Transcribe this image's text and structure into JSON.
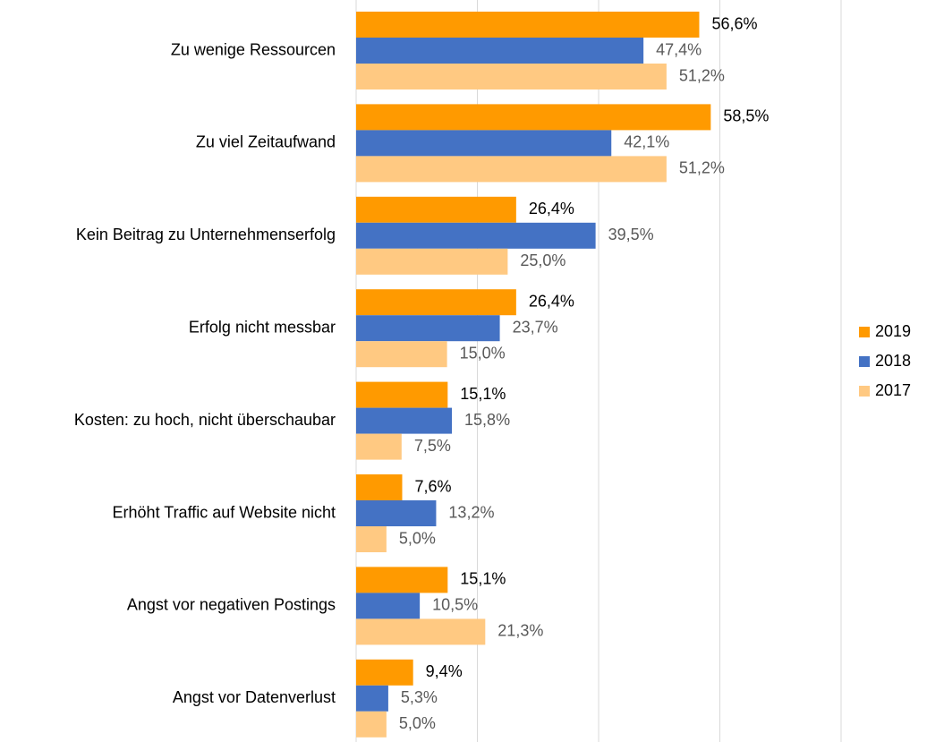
{
  "chart_data": {
    "type": "hbar",
    "categories": [
      "Zu wenige Ressourcen",
      "Zu viel Zeitaufwand",
      "Kein Beitrag zu Unternehmenserfolg",
      "Erfolg nicht messbar",
      "Kosten: zu hoch, nicht überschaubar",
      "Erhöht Traffic auf Website nicht",
      "Angst vor negativen Postings",
      "Angst vor Datenverlust"
    ],
    "series": [
      {
        "name": "2019",
        "color": "#ff9a00",
        "label_color": "#000000",
        "values": [
          56.6,
          58.5,
          26.4,
          26.4,
          15.1,
          7.6,
          15.1,
          9.4
        ],
        "value_labels": [
          "56,6%",
          "58,5%",
          "26,4%",
          "26,4%",
          "15,1%",
          "7,6%",
          "15,1%",
          "9,4%"
        ]
      },
      {
        "name": "2018",
        "color": "#4472c4",
        "label_color": "#595959",
        "values": [
          47.4,
          42.1,
          39.5,
          23.7,
          15.8,
          13.2,
          10.5,
          5.3
        ],
        "value_labels": [
          "47,4%",
          "42,1%",
          "39,5%",
          "23,7%",
          "15,8%",
          "13,2%",
          "10,5%",
          "5,3%"
        ]
      },
      {
        "name": "2017",
        "color": "#ffc982",
        "label_color": "#595959",
        "values": [
          51.2,
          51.2,
          25.0,
          15.0,
          7.5,
          5.0,
          21.3,
          5.0
        ],
        "value_labels": [
          "51,2%",
          "51,2%",
          "25,0%",
          "15,0%",
          "7,5%",
          "5,0%",
          "21,3%",
          "5,0%"
        ]
      }
    ],
    "xlim": [
      0,
      80
    ],
    "xticks": [
      0,
      20,
      40,
      60,
      80
    ],
    "grid": true,
    "legend": "right"
  }
}
